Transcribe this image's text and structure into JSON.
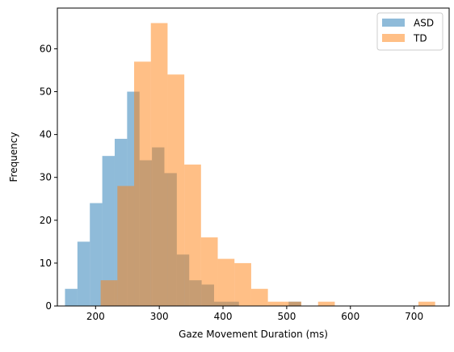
{
  "chart_data": {
    "type": "bar",
    "xlabel": "Gaze Movement Duration (ms)",
    "ylabel": "Frequency",
    "xlim": [
      140,
      755
    ],
    "ylim": [
      0,
      69.5
    ],
    "x_ticks": [
      200,
      300,
      400,
      500,
      600,
      700
    ],
    "y_ticks": [
      0,
      10,
      20,
      30,
      40,
      50,
      60
    ],
    "grid": false,
    "legend_position": "top-right",
    "series": [
      {
        "name": "ASD",
        "color": "#1f77b4",
        "opacity": 0.5,
        "bin_edges": [
          152,
          171.5,
          191,
          210.5,
          230,
          249.5,
          269,
          288.5,
          308,
          327.5,
          347,
          366.5,
          386,
          405.5,
          425,
          444.5,
          464,
          483.5,
          503,
          522.5
        ],
        "counts": [
          4,
          15,
          24,
          35,
          39,
          50,
          34,
          37,
          31,
          12,
          6,
          5,
          1,
          1,
          0,
          0,
          0,
          0,
          1
        ]
      },
      {
        "name": "TD",
        "color": "#ff7f0e",
        "opacity": 0.5,
        "bin_edges": [
          208,
          234.25,
          260.5,
          286.75,
          313,
          339.25,
          365.5,
          391.75,
          418,
          444.25,
          470.5,
          496.75,
          523,
          549.25,
          575.5,
          601.75,
          628,
          654.25,
          680.5,
          706.75,
          733
        ],
        "counts": [
          6,
          28,
          57,
          66,
          54,
          33,
          16,
          11,
          10,
          4,
          1,
          1,
          0,
          1,
          0,
          0,
          0,
          0,
          0,
          1
        ]
      }
    ]
  }
}
